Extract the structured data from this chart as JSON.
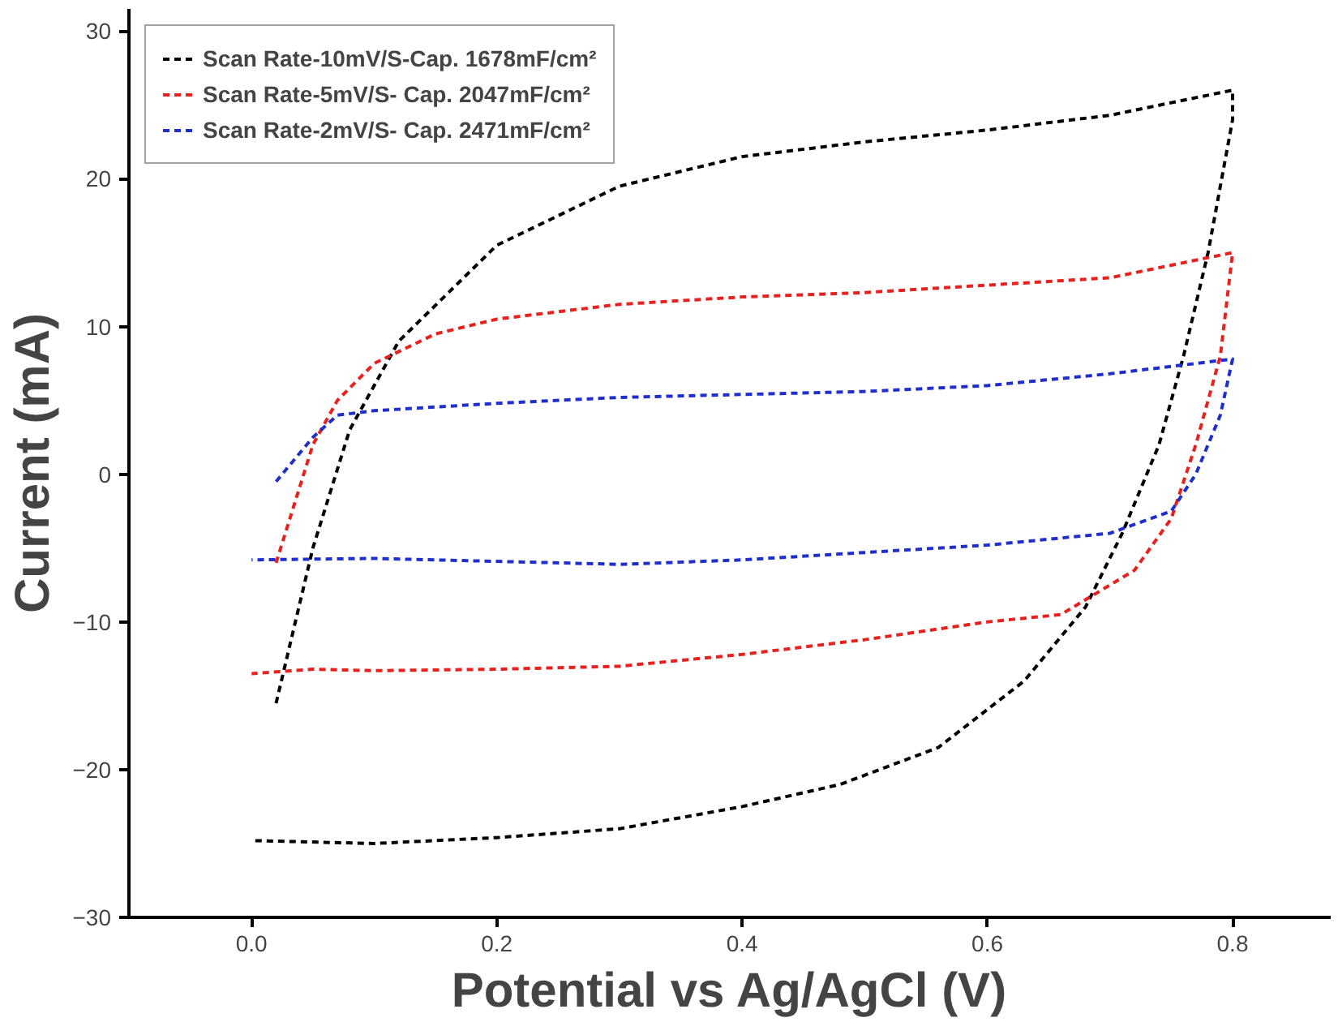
{
  "chart_data": {
    "type": "line",
    "xlabel": "Potential vs Ag/AgCl (V)",
    "ylabel": "Current (mA)",
    "xlim": [
      -0.1,
      0.88
    ],
    "ylim": [
      -30,
      31.5
    ],
    "xticks": [
      {
        "value": 0,
        "label": "0.0"
      },
      0.2,
      0.4,
      0.6,
      0.8
    ],
    "yticks": [
      -30,
      -20,
      -10,
      0,
      10,
      20,
      30
    ],
    "grid": false,
    "legend": "top left",
    "line_style": "dashed",
    "marker": "none",
    "series": [
      {
        "name": "Scan Rate-10mV/S-Cap. 1678mF/cm²",
        "color": "#000000",
        "x": [
          0.02,
          0.05,
          0.08,
          0.12,
          0.2,
          0.3,
          0.4,
          0.5,
          0.6,
          0.7,
          0.8,
          0.8,
          0.78,
          0.76,
          0.74,
          0.71,
          0.68,
          0.63,
          0.56,
          0.48,
          0.4,
          0.3,
          0.2,
          0.1,
          0.0
        ],
        "values": [
          -15.5,
          -5,
          3,
          9,
          15.5,
          19.5,
          21.5,
          22.5,
          23.3,
          24.3,
          26,
          24,
          15,
          8,
          2,
          -4,
          -9,
          -14,
          -18.5,
          -21,
          -22.5,
          -24,
          -24.6,
          -25,
          -24.8
        ]
      },
      {
        "name": "Scan Rate-5mV/S- Cap. 2047mF/cm²",
        "color": "#e8201e",
        "x": [
          0.02,
          0.05,
          0.07,
          0.1,
          0.15,
          0.2,
          0.3,
          0.4,
          0.5,
          0.6,
          0.7,
          0.8,
          0.79,
          0.77,
          0.75,
          0.72,
          0.66,
          0.6,
          0.5,
          0.4,
          0.3,
          0.2,
          0.1,
          0.05,
          0.0
        ],
        "values": [
          -6,
          2,
          5,
          7.5,
          9.5,
          10.5,
          11.5,
          12,
          12.3,
          12.8,
          13.3,
          15,
          8,
          2,
          -3,
          -6.5,
          -9.5,
          -10,
          -11.2,
          -12.2,
          -13,
          -13.2,
          -13.3,
          -13.2,
          -13.5
        ]
      },
      {
        "name": "Scan Rate-2mV/S- Cap. 2471mF/cm²",
        "color": "#1f2fcc",
        "x": [
          0.02,
          0.05,
          0.07,
          0.1,
          0.2,
          0.3,
          0.4,
          0.5,
          0.6,
          0.7,
          0.8,
          0.79,
          0.77,
          0.75,
          0.7,
          0.6,
          0.5,
          0.4,
          0.3,
          0.2,
          0.1,
          0.0
        ],
        "values": [
          -0.5,
          2.5,
          4,
          4.3,
          4.8,
          5.2,
          5.4,
          5.6,
          6,
          6.8,
          7.8,
          4,
          0,
          -2.5,
          -4,
          -4.8,
          -5.3,
          -5.8,
          -6.1,
          -5.9,
          -5.7,
          -5.8
        ]
      }
    ]
  }
}
